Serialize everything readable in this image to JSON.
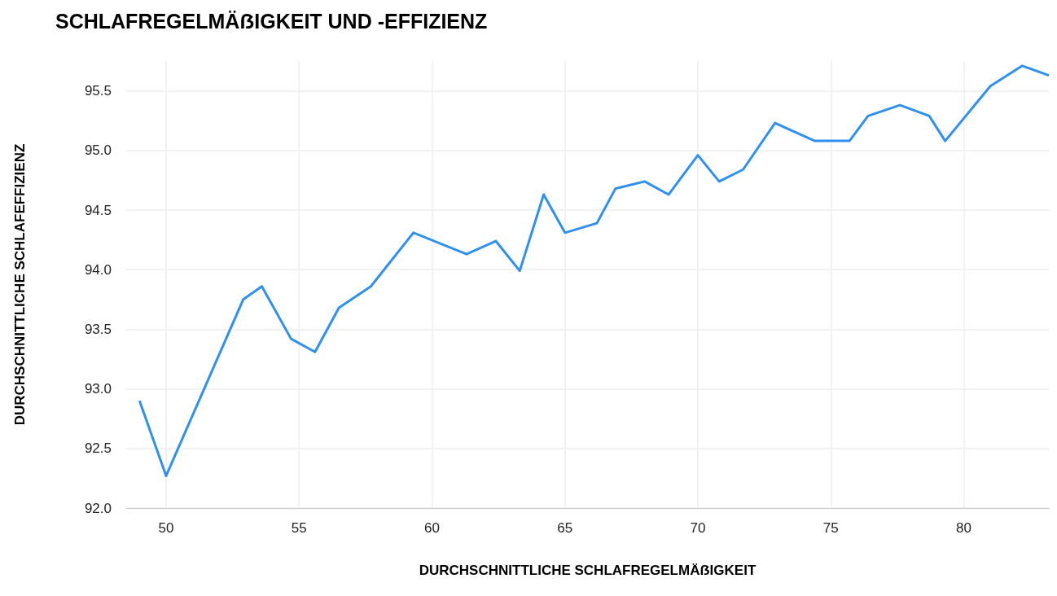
{
  "chart_data": {
    "type": "line",
    "title": "SCHLAFREGELMÄẞIGKEIT UND -EFFIZIENZ",
    "xlabel": "DURCHSCHNITTLICHE SCHLAFREGELMÄẞIGKEIT",
    "ylabel": "DURCHSCHNITTLICHE SCHLAFEFFIZIENZ",
    "x": [
      49.0,
      50.0,
      52.9,
      53.6,
      54.7,
      55.6,
      56.5,
      57.7,
      59.3,
      61.3,
      62.4,
      63.3,
      64.2,
      65.0,
      66.2,
      66.9,
      68.0,
      68.9,
      70.0,
      70.8,
      71.7,
      72.9,
      74.4,
      75.7,
      76.4,
      77.6,
      78.7,
      79.3,
      81.0,
      82.2,
      83.2
    ],
    "series": [
      {
        "color": "#2e90f0",
        "values": [
          92.9,
          92.27,
          93.75,
          93.86,
          93.42,
          93.31,
          93.68,
          93.86,
          94.31,
          94.13,
          94.24,
          93.99,
          94.63,
          94.31,
          94.39,
          94.68,
          94.74,
          94.63,
          94.96,
          94.74,
          94.84,
          95.23,
          95.08,
          95.08,
          95.29,
          95.38,
          95.29,
          95.08,
          95.54,
          95.71,
          95.63
        ]
      }
    ],
    "xlim": [
      48.5,
      83.2
    ],
    "xticks": [
      50,
      55,
      60,
      65,
      70,
      75,
      80
    ],
    "ylim": [
      92.0,
      95.75
    ],
    "yticks": [
      {
        "value": 92,
        "label": "92.0"
      },
      {
        "value": 92.5,
        "label": "92.5"
      },
      {
        "value": 93,
        "label": "93.0"
      },
      {
        "value": 93.5,
        "label": "93.5"
      },
      {
        "value": 94,
        "label": "94.0"
      },
      {
        "value": 94.5,
        "label": "94.5"
      },
      {
        "value": 95,
        "label": "95.0"
      },
      {
        "value": 95.5,
        "label": "95.5"
      }
    ],
    "grid": true,
    "marker": "none",
    "line_style": "solid"
  }
}
